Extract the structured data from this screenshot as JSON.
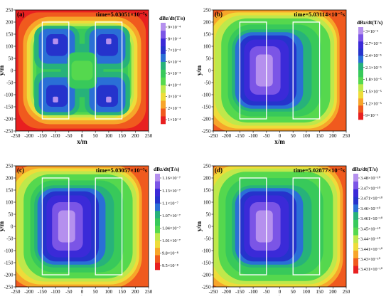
{
  "figure": {
    "x_label": "x/m",
    "y_label": "y/m",
    "colorbar_title": "dBz/dt(T/s)",
    "x_ticks": [
      "-250",
      "-200",
      "-150",
      "-100",
      "-50",
      "0",
      "50",
      "100",
      "150",
      "200",
      "250"
    ],
    "y_ticks": [
      "250",
      "200",
      "150",
      "100",
      "50",
      "0",
      "-50",
      "-100",
      "-150",
      "-200",
      "-250"
    ],
    "colorscale": [
      "#e82020",
      "#f05a1e",
      "#f7a52a",
      "#eedc3a",
      "#bfe84b",
      "#55d84e",
      "#38c95a",
      "#27b27a",
      "#2a6fd6",
      "#2533cc",
      "#3b2ad8",
      "#7b55e6",
      "#b590ee"
    ]
  },
  "chart_data": [
    {
      "type": "heatmap",
      "panel_label": "(a)",
      "time_label": "time=5.03051×10⁻⁵s",
      "colorbar_title": "dBz/dt(T/s)",
      "colorbar_ticks": [
        "9×10⁻⁴",
        "8×10⁻⁴",
        "7×10⁻⁴",
        "6×10⁻⁴",
        "5×10⁻⁴",
        "4×10⁻⁴",
        "3×10⁻⁴",
        "2×10⁻⁴",
        "1×10⁻⁴"
      ],
      "xlim": [
        -250,
        250
      ],
      "ylim": [
        -250,
        250
      ],
      "rectangles": [
        {
          "x": [
            -150,
            -50
          ],
          "y": [
            -200,
            200
          ]
        },
        {
          "x": [
            50,
            150
          ],
          "y": [
            -200,
            200
          ]
        }
      ]
    },
    {
      "type": "heatmap",
      "panel_label": "(b)",
      "time_label": "time=5.03114×10⁻⁵s",
      "colorbar_title": "dBz/dt(T/s)",
      "colorbar_ticks": [
        "3×10⁻⁵",
        "2.7×10⁻⁵",
        "2.4×10⁻⁵",
        "2.1×10⁻⁵",
        "1.8×10⁻⁵",
        "1.5×10⁻⁵",
        "1.2×10⁻⁵",
        "9×10⁻⁶"
      ],
      "xlim": [
        -250,
        250
      ],
      "ylim": [
        -250,
        250
      ],
      "rectangles": [
        {
          "x": [
            -150,
            -50
          ],
          "y": [
            -200,
            200
          ]
        },
        {
          "x": [
            50,
            150
          ],
          "y": [
            -200,
            200
          ]
        }
      ]
    },
    {
      "type": "heatmap",
      "panel_label": "(c)",
      "time_label": "time=5.03057×10⁻⁵s",
      "colorbar_title": "dBz/dt(T/s)",
      "colorbar_ticks": [
        "1.16×10⁻⁷",
        "1.13×10⁻⁷",
        "1.1×10⁻⁷",
        "1.07×10⁻⁷",
        "1.04×10⁻⁷",
        "1.01×10⁻⁷",
        "9.8×10⁻⁸",
        "9.5×10⁻⁸"
      ],
      "xlim": [
        -250,
        250
      ],
      "ylim": [
        -250,
        250
      ],
      "rectangles": [
        {
          "x": [
            -150,
            -50
          ],
          "y": [
            -200,
            200
          ]
        },
        {
          "x": [
            50,
            150
          ],
          "y": [
            -200,
            200
          ]
        }
      ]
    },
    {
      "type": "heatmap",
      "panel_label": "(d)",
      "time_label": "time=5.02877×10⁻⁵s",
      "colorbar_title": "dBz/dt(T/s)",
      "colorbar_ticks": [
        "3.48×10⁻¹⁰",
        "3.47×10⁻¹⁰",
        "3.471×10⁻¹⁰",
        "3.46×10⁻¹⁰",
        "3.461×10⁻¹⁰",
        "3.45×10⁻¹⁰",
        "3.44×10⁻¹⁰",
        "3.441×10⁻¹⁰",
        "3.43×10⁻¹⁰",
        "3.431×10⁻¹⁰"
      ],
      "xlim": [
        -250,
        250
      ],
      "ylim": [
        -250,
        250
      ],
      "rectangles": [
        {
          "x": [
            -150,
            -50
          ],
          "y": [
            -200,
            200
          ]
        },
        {
          "x": [
            50,
            150
          ],
          "y": [
            -200,
            200
          ]
        }
      ]
    }
  ]
}
